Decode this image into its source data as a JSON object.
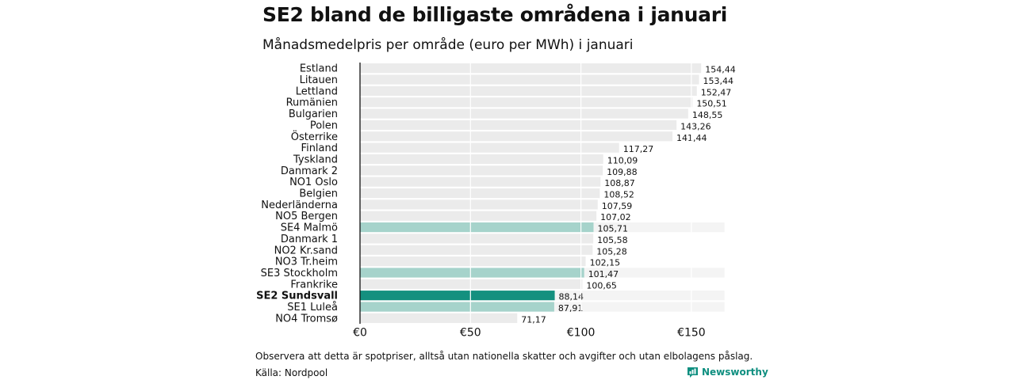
{
  "header": {
    "title": "SE2 bland de billigaste områdena i januari",
    "subtitle": "Månadsmedelpris per område (euro per MWh) i januari"
  },
  "footer": {
    "note": "Observera att detta är spotpriser, alltså utan nationella skatter och avgifter och utan elbolagens påslag.",
    "source": "Källa: Nordpool",
    "brand": "Newsworthy"
  },
  "colors": {
    "default_bar": "#ebebeb",
    "light_highlight": "#a6d3cb",
    "dark_highlight": "#14907f",
    "brand": "#0f8f80"
  },
  "chart_data": {
    "type": "bar",
    "orientation": "horizontal",
    "categories": [
      "Estland",
      "Litauen",
      "Lettland",
      "Rumänien",
      "Bulgarien",
      "Polen",
      "Österrike",
      "Finland",
      "Tyskland",
      "Danmark  2",
      "NO1 Oslo",
      "Belgien",
      "Nederländerna",
      "NO5 Bergen",
      "SE4  Malmö",
      "Danmark  1",
      "NO2 Kr.sand",
      "NO3 Tr.heim",
      "SE3  Stockholm",
      "Frankrike",
      "SE2 Sundsvall",
      "SE1  Luleå",
      "NO4 Tromsø"
    ],
    "values": [
      154.44,
      153.44,
      152.47,
      150.51,
      148.55,
      143.26,
      141.44,
      117.27,
      110.09,
      109.88,
      108.87,
      108.52,
      107.59,
      107.02,
      105.71,
      105.58,
      105.28,
      102.15,
      101.47,
      100.65,
      88.14,
      87.91,
      71.17
    ],
    "value_labels": [
      "154,44",
      "153,44",
      "152,47",
      "150,51",
      "148,55",
      "143,26",
      "141,44",
      "117,27",
      "110,09",
      "109,88",
      "108,87",
      "108,52",
      "107,59",
      "107,02",
      "105,71",
      "105,58",
      "105,28",
      "102,15",
      "101,47",
      "100,65",
      "88,14",
      "87,91",
      "71,17"
    ],
    "highlight": [
      "none",
      "none",
      "none",
      "none",
      "none",
      "none",
      "none",
      "none",
      "none",
      "none",
      "none",
      "none",
      "none",
      "none",
      "light",
      "none",
      "none",
      "none",
      "light",
      "none",
      "dark",
      "light",
      "none"
    ],
    "x_ticks": [
      0,
      50,
      100,
      150
    ],
    "x_tick_labels": [
      "€0",
      "€50",
      "€100",
      "€150"
    ],
    "xlim": [
      0,
      165
    ],
    "title": "SE2 bland de billigaste områdena i januari",
    "subtitle": "Månadsmedelpris per område (euro per MWh) i januari",
    "xlabel": "",
    "ylabel": "",
    "grid": true
  }
}
